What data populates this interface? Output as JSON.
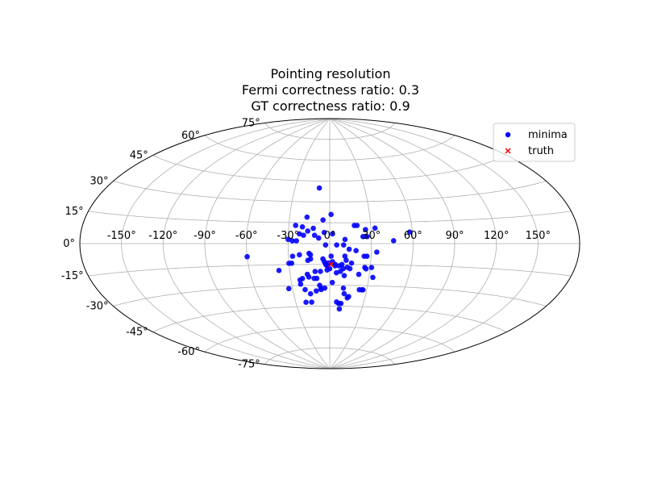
{
  "chart_data": {
    "type": "scatter",
    "projection": "aitoff",
    "title_lines": [
      "Pointing resolution",
      "Fermi correctness ratio: 0.3",
      "GT correctness ratio: 0.9"
    ],
    "grid": true,
    "legend_position": "upper-right",
    "x_ticks": [
      "-150°",
      "-120°",
      "-90°",
      "-60°",
      "-30°",
      "0°",
      "30°",
      "60°",
      "90°",
      "120°",
      "150°"
    ],
    "y_ticks": [
      "-75°",
      "-60°",
      "-45°",
      "-30°",
      "-15°",
      "0°",
      "15°",
      "30°",
      "45°",
      "60°",
      "75°"
    ],
    "x_tick_values": [
      -150,
      -120,
      -90,
      -60,
      -30,
      0,
      30,
      60,
      90,
      120,
      150
    ],
    "y_tick_values": [
      -75,
      -60,
      -45,
      -30,
      -15,
      0,
      15,
      30,
      45,
      60,
      75
    ],
    "xlim": [
      -180,
      180
    ],
    "ylim": [
      -90,
      90
    ],
    "colors": {
      "minima": "#0000ff",
      "truth": "#ff0000",
      "grid": "#b0b0b0"
    },
    "series": [
      {
        "name": "minima",
        "marker": "circle",
        "points": [
          [
            -9,
            40
          ],
          [
            1,
            21
          ],
          [
            -17,
            19
          ],
          [
            -5,
            17
          ],
          [
            18,
            13
          ],
          [
            20,
            13
          ],
          [
            -25,
            13
          ],
          [
            -20,
            12
          ],
          [
            33,
            11
          ],
          [
            26,
            10
          ],
          [
            -12,
            11
          ],
          [
            -16,
            9
          ],
          [
            -22,
            7
          ],
          [
            -19,
            6
          ],
          [
            -4,
            8
          ],
          [
            -11,
            6
          ],
          [
            2,
            7
          ],
          [
            -8,
            4
          ],
          [
            58,
            8
          ],
          [
            46,
            2
          ],
          [
            -30,
            3
          ],
          [
            -24,
            2
          ],
          [
            -27,
            2
          ],
          [
            11,
            3
          ],
          [
            24,
            5
          ],
          [
            27,
            5
          ],
          [
            -60,
            -9
          ],
          [
            -3,
            -1
          ],
          [
            5,
            -1
          ],
          [
            10,
            -1
          ],
          [
            14,
            -4
          ],
          [
            19,
            -5
          ],
          [
            34,
            -6
          ],
          [
            -22,
            -8
          ],
          [
            -15,
            -7
          ],
          [
            -14,
            -8
          ],
          [
            -27,
            -9
          ],
          [
            1,
            -9
          ],
          [
            11,
            -9
          ],
          [
            25,
            -9
          ],
          [
            27,
            -9
          ],
          [
            -14,
            -11
          ],
          [
            -28,
            -14
          ],
          [
            -30,
            -14
          ],
          [
            -5,
            -11
          ],
          [
            12,
            -12
          ],
          [
            16,
            -14
          ],
          [
            -3,
            -15
          ],
          [
            -2,
            -16
          ],
          [
            4,
            -15
          ],
          [
            7,
            -16
          ],
          [
            9,
            -15
          ],
          [
            -16,
            -12
          ],
          [
            26,
            -17
          ],
          [
            27,
            -18
          ],
          [
            8,
            -20
          ],
          [
            -11,
            -20
          ],
          [
            -38,
            -19
          ],
          [
            13,
            -17
          ],
          [
            0,
            -18
          ],
          [
            5,
            -21
          ],
          [
            31,
            -17
          ],
          [
            -7,
            -20
          ],
          [
            -2,
            -19
          ],
          [
            10,
            -18
          ],
          [
            15,
            -18
          ],
          [
            -17,
            -22
          ],
          [
            11,
            -23
          ],
          [
            22,
            -22
          ],
          [
            -16,
            -24
          ],
          [
            -21,
            -25
          ],
          [
            33,
            -24
          ],
          [
            -12,
            -25
          ],
          [
            -10,
            -25
          ],
          [
            -23,
            -26
          ],
          [
            2,
            -28
          ],
          [
            -23,
            -29
          ],
          [
            -8,
            -30
          ],
          [
            -4,
            -32
          ],
          [
            -7,
            -32
          ],
          [
            -20,
            -33
          ],
          [
            -33,
            -32
          ],
          [
            -11,
            -34
          ],
          [
            26,
            -33
          ],
          [
            27,
            -33
          ],
          [
            24,
            -33
          ],
          [
            11,
            -32
          ],
          [
            -7,
            -33
          ],
          [
            -16,
            -36
          ],
          [
            12,
            -36
          ],
          [
            16,
            -38
          ],
          [
            15,
            -39
          ],
          [
            -21,
            -42
          ],
          [
            -16,
            -42
          ],
          [
            6,
            -42
          ],
          [
            8,
            -43
          ],
          [
            10,
            -43
          ],
          [
            9,
            -47
          ],
          [
            2,
            -13
          ],
          [
            4,
            -16
          ],
          [
            -1,
            -14
          ],
          [
            -4,
            -13
          ]
        ]
      },
      {
        "name": "truth",
        "marker": "x",
        "points": [
          [
            1,
            -15
          ]
        ]
      }
    ]
  }
}
